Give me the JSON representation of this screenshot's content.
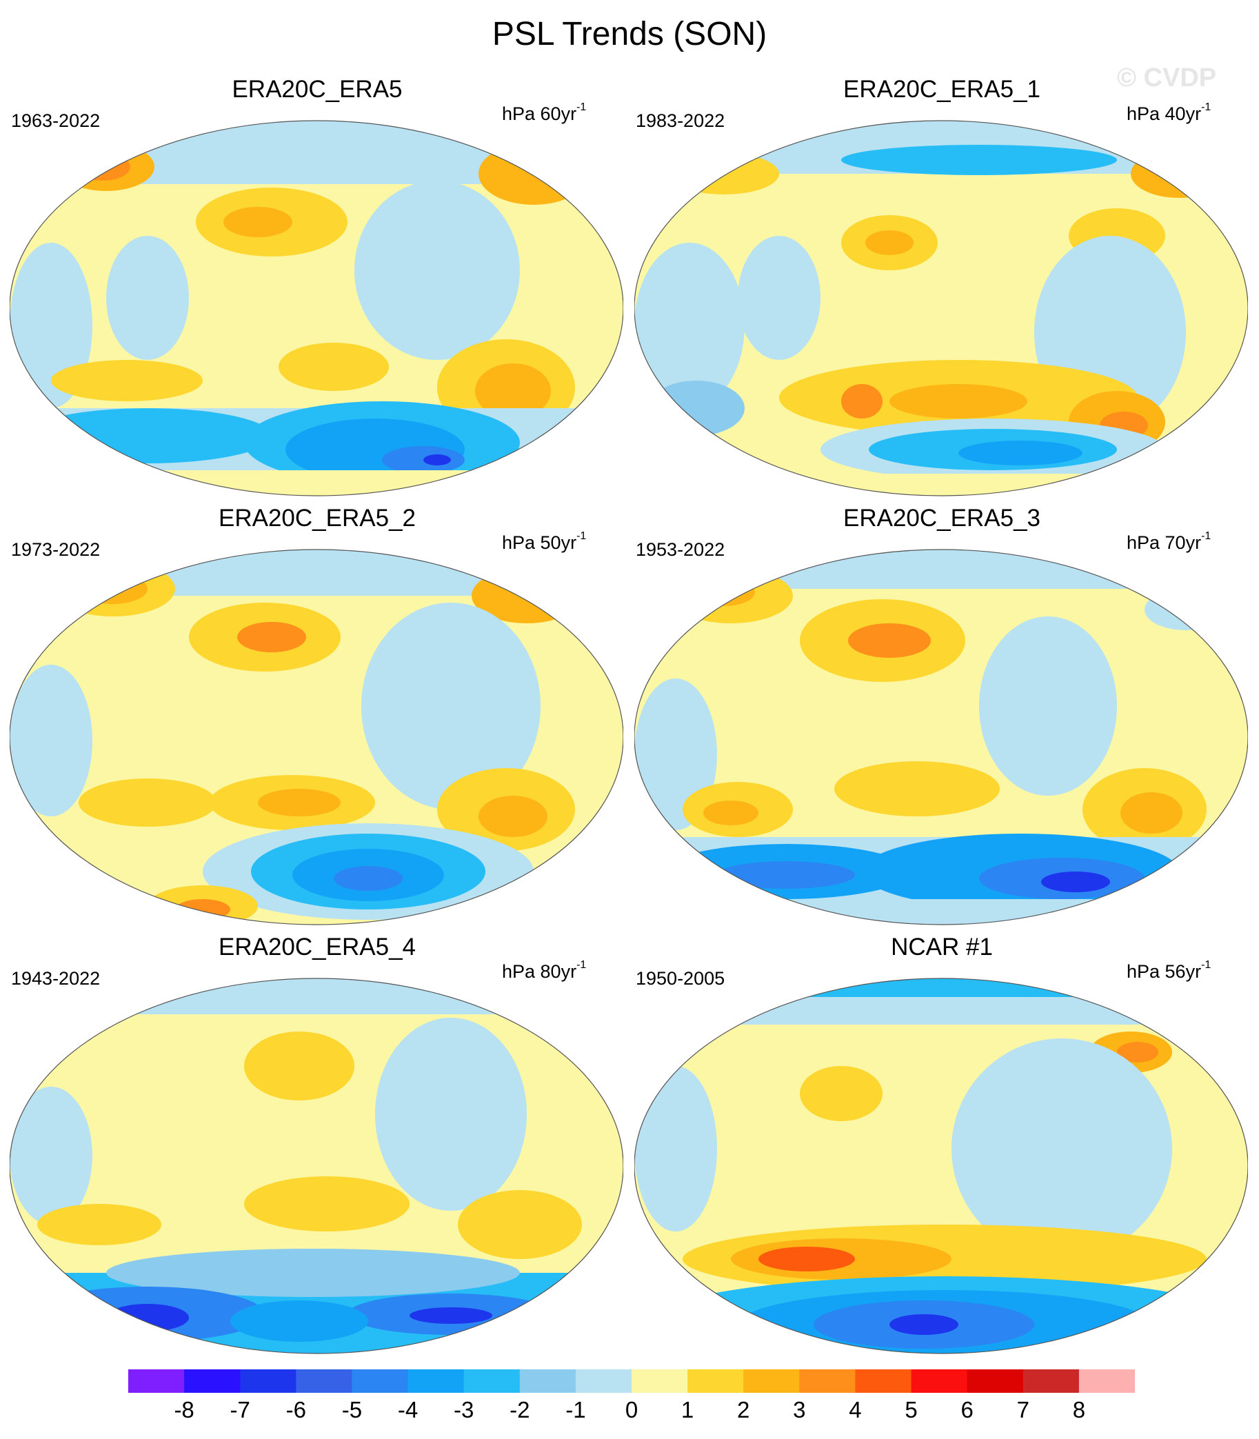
{
  "title": "PSL Trends (SON)",
  "watermark": "© CVDP",
  "panels": [
    {
      "title": "ERA20C_ERA5",
      "years": "1963-2022",
      "units": "hPa 60yr",
      "units_exp": "-1"
    },
    {
      "title": "ERA20C_ERA5_1",
      "years": "1983-2022",
      "units": "hPa 40yr",
      "units_exp": "-1"
    },
    {
      "title": "ERA20C_ERA5_2",
      "years": "1973-2022",
      "units": "hPa 50yr",
      "units_exp": "-1"
    },
    {
      "title": "ERA20C_ERA5_3",
      "years": "1953-2022",
      "units": "hPa 70yr",
      "units_exp": "-1"
    },
    {
      "title": "ERA20C_ERA5_4",
      "years": "1943-2022",
      "units": "hPa 80yr",
      "units_exp": "-1"
    },
    {
      "title": "NCAR #1",
      "years": "1950-2005",
      "units": "hPa 56yr",
      "units_exp": "-1"
    }
  ],
  "colorbar": {
    "labels": [
      "-8",
      "-7",
      "-6",
      "-5",
      "-4",
      "-3",
      "-2",
      "-1",
      "0",
      "1",
      "2",
      "3",
      "4",
      "5",
      "6",
      "7",
      "8"
    ],
    "colors": [
      "#7f1fff",
      "#2a11ff",
      "#1e35ee",
      "#3562e6",
      "#2b85f2",
      "#13a3f6",
      "#26bdf6",
      "#8acbee",
      "#b8e1f2",
      "#fcf7a4",
      "#fdd630",
      "#fdb515",
      "#fd8f1a",
      "#fd5a0d",
      "#fc0f0f",
      "#dd0303",
      "#cc2828",
      "#fcb0b0"
    ]
  }
}
